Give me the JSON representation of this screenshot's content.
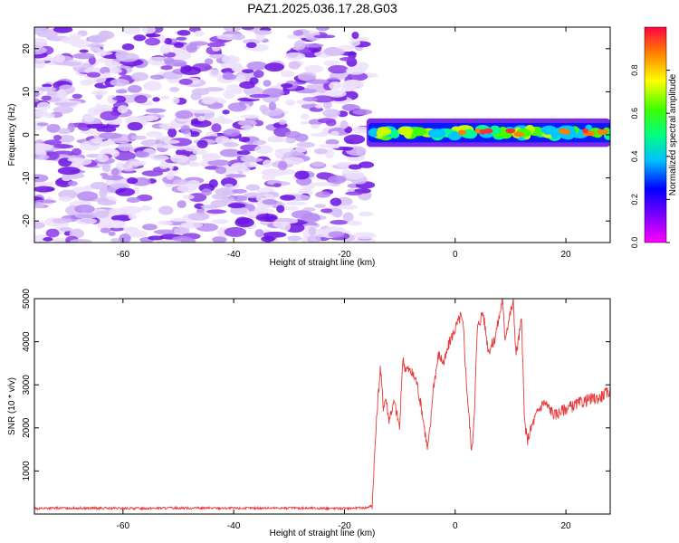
{
  "title": "PAZ1.2025.036.17.28.G03",
  "colors": {
    "snr_line": "#e53a3a",
    "axis": "#000000",
    "colormap": [
      "#ff00ff",
      "#8000ff",
      "#0000ff",
      "#00c0ff",
      "#00ff80",
      "#40ff00",
      "#ffff00",
      "#ff8000",
      "#ff0040"
    ]
  },
  "chart_data": [
    {
      "type": "heatmap",
      "xlabel": "Height of straight line (km)",
      "ylabel": "Frequency (Hz)",
      "xlim": [
        -76,
        28
      ],
      "ylim": [
        -25,
        25
      ],
      "xticks": [
        -60,
        -40,
        -20,
        0,
        20
      ],
      "yticks": [
        -20,
        -10,
        0,
        10,
        20
      ],
      "noise_region_x": [
        -76,
        -16
      ],
      "signal_band": {
        "x": [
          -16,
          28
        ],
        "center_hz": 0.5,
        "width_hz": 3
      },
      "colorbar": {
        "label": "Normalized spectral amplitude",
        "range": [
          0,
          1
        ],
        "ticks": [
          0.0,
          0.2,
          0.4,
          0.6,
          0.8
        ]
      }
    },
    {
      "type": "line",
      "xlabel": "Height of straight line (km)",
      "ylabel": "SNR (10 * v/v)",
      "xlim": [
        -76,
        28
      ],
      "ylim": [
        0,
        5000
      ],
      "xticks": [
        -60,
        -40,
        -20,
        0,
        20
      ],
      "yticks": [
        1000,
        2000,
        3000,
        4000,
        5000
      ],
      "series": [
        {
          "x": [
            -76,
            -70,
            -60,
            -50,
            -40,
            -30,
            -20,
            -16,
            -15,
            -14.5,
            -14,
            -13.5,
            -13,
            -12.5,
            -12,
            -11,
            -10,
            -9.5,
            -9,
            -8,
            -7,
            -6,
            -5,
            -4.5,
            -4,
            -3,
            -2,
            -1,
            0,
            1,
            1.5,
            2,
            3,
            3.5,
            4,
            5,
            6,
            7,
            8,
            8.5,
            9,
            10,
            10.5,
            11,
            12,
            12.5,
            13,
            14,
            15,
            16,
            18,
            20,
            22,
            24,
            26,
            28
          ],
          "y": [
            130,
            140,
            130,
            140,
            135,
            140,
            130,
            150,
            200,
            1500,
            2600,
            3400,
            2500,
            2700,
            2200,
            2600,
            2000,
            3600,
            3400,
            3300,
            3100,
            2400,
            1500,
            2000,
            2900,
            3700,
            3500,
            4000,
            4300,
            4600,
            4300,
            3100,
            1400,
            2500,
            4300,
            4700,
            3800,
            4000,
            4600,
            5000,
            4100,
            4700,
            4900,
            3700,
            4500,
            2200,
            1700,
            2100,
            2400,
            2600,
            2300,
            2450,
            2550,
            2650,
            2700,
            2850
          ]
        }
      ]
    }
  ]
}
